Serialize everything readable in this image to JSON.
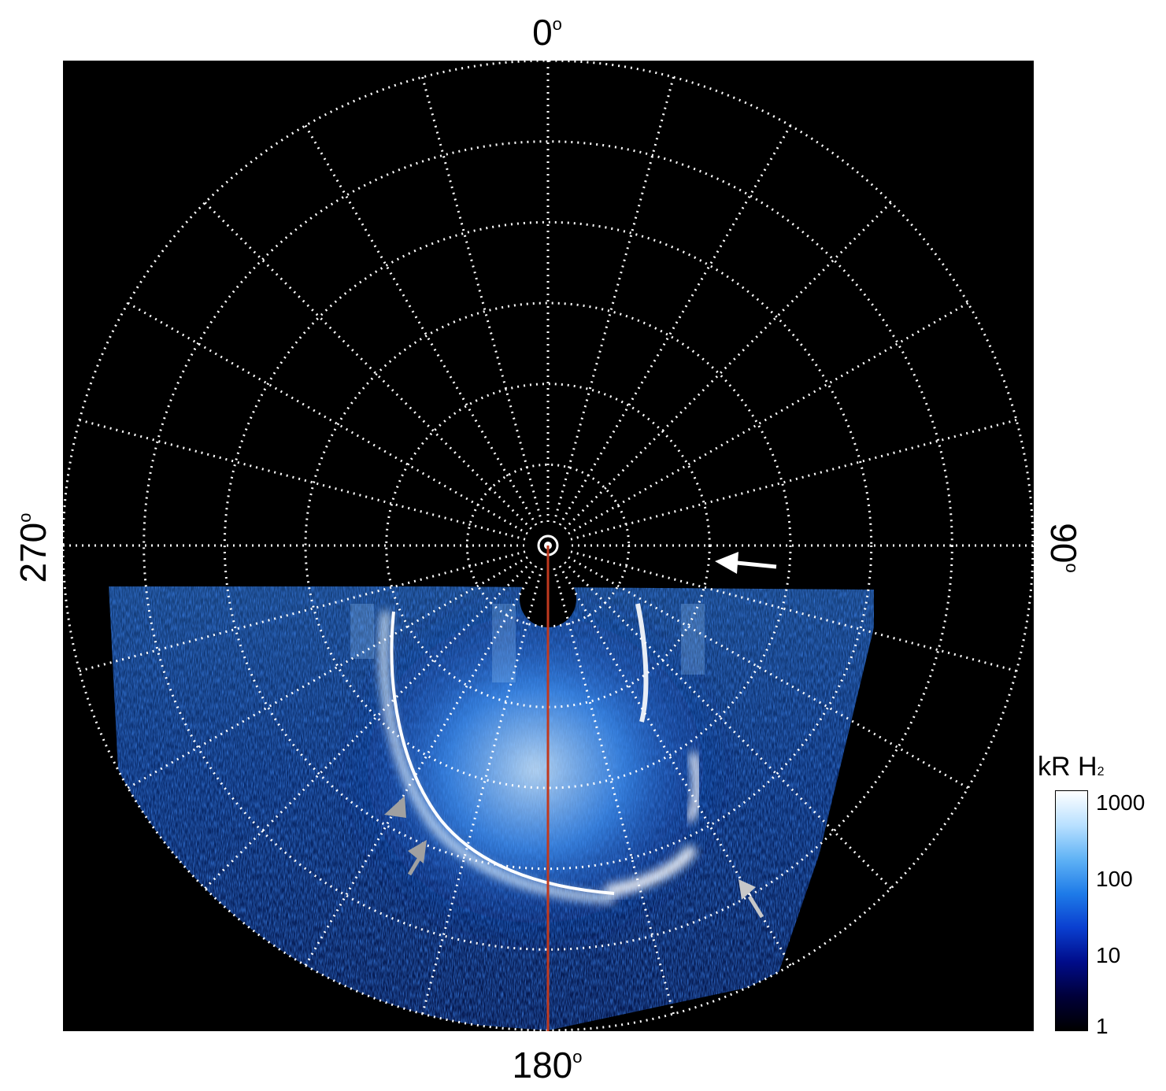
{
  "axis_labels": {
    "top": "0",
    "right": "90",
    "bottom": "180",
    "left": "270",
    "degree_symbol": "o"
  },
  "colorbar": {
    "title": "kR H",
    "title_subscript": "2",
    "ticks": [
      "1000",
      "100",
      "10",
      "1"
    ],
    "scale": "log",
    "colors": [
      "#000000",
      "#00003a",
      "#000c8a",
      "#0a3fd0",
      "#1e7be8",
      "#5fb2f5",
      "#b8e0ff",
      "#ffffff"
    ]
  },
  "grid": {
    "style": "dotted",
    "color": "#ffffff",
    "meridian_step_deg": 15,
    "ring_count": 6
  },
  "overlay_line_color": "#c0391e",
  "arrows": [
    {
      "color": "#ffffff",
      "direction": "pointing left toward 90 side"
    },
    {
      "color": "#a0a0a0",
      "direction": "pointing up-left"
    },
    {
      "color": "#a0a0a0",
      "direction": "pointing up-right"
    },
    {
      "color": "#c8c8c8",
      "direction": "pointing up-left"
    }
  ]
}
